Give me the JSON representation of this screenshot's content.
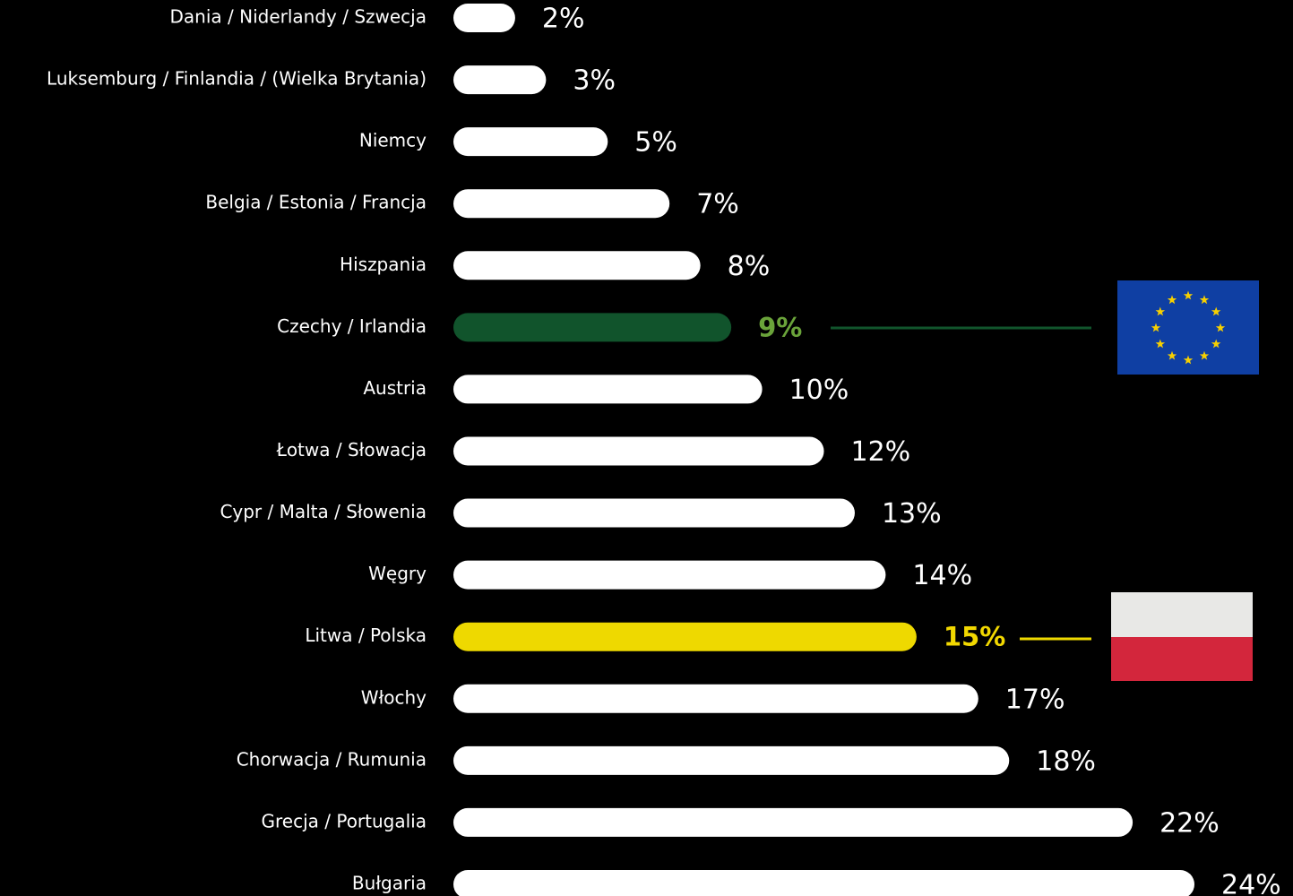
{
  "chart_data": {
    "type": "bar",
    "orientation": "horizontal",
    "categories": [
      "Dania / Niderlandy / Szwecja",
      "Luksemburg / Finlandia / (Wielka Brytania)",
      "Niemcy",
      "Belgia / Estonia / Francja",
      "Hiszpania",
      "Czechy / Irlandia",
      "Austria",
      "Łotwa / Słowacja",
      "Cypr / Malta / Słowenia",
      "Węgry",
      "Litwa / Polska",
      "Włochy",
      "Chorwacja / Rumunia",
      "Grecja / Portugalia",
      "Bułgaria"
    ],
    "values": [
      2,
      3,
      5,
      7,
      8,
      9,
      10,
      12,
      13,
      14,
      15,
      17,
      18,
      22,
      24
    ],
    "value_labels": [
      "2%",
      "3%",
      "5%",
      "7%",
      "8%",
      "9%",
      "10%",
      "12%",
      "13%",
      "14%",
      "15%",
      "17%",
      "18%",
      "22%",
      "24%"
    ],
    "colors": [
      "#ffffff",
      "#ffffff",
      "#ffffff",
      "#ffffff",
      "#ffffff",
      "#11542c",
      "#ffffff",
      "#ffffff",
      "#ffffff",
      "#ffffff",
      "#eed900",
      "#ffffff",
      "#ffffff",
      "#ffffff",
      "#ffffff"
    ],
    "label_colors": [
      "#ffffff",
      "#ffffff",
      "#ffffff",
      "#ffffff",
      "#ffffff",
      "#6aa33a",
      "#ffffff",
      "#ffffff",
      "#ffffff",
      "#ffffff",
      "#f2d800",
      "#ffffff",
      "#ffffff",
      "#ffffff",
      "#ffffff"
    ],
    "xlim": [
      0,
      24
    ]
  }
}
